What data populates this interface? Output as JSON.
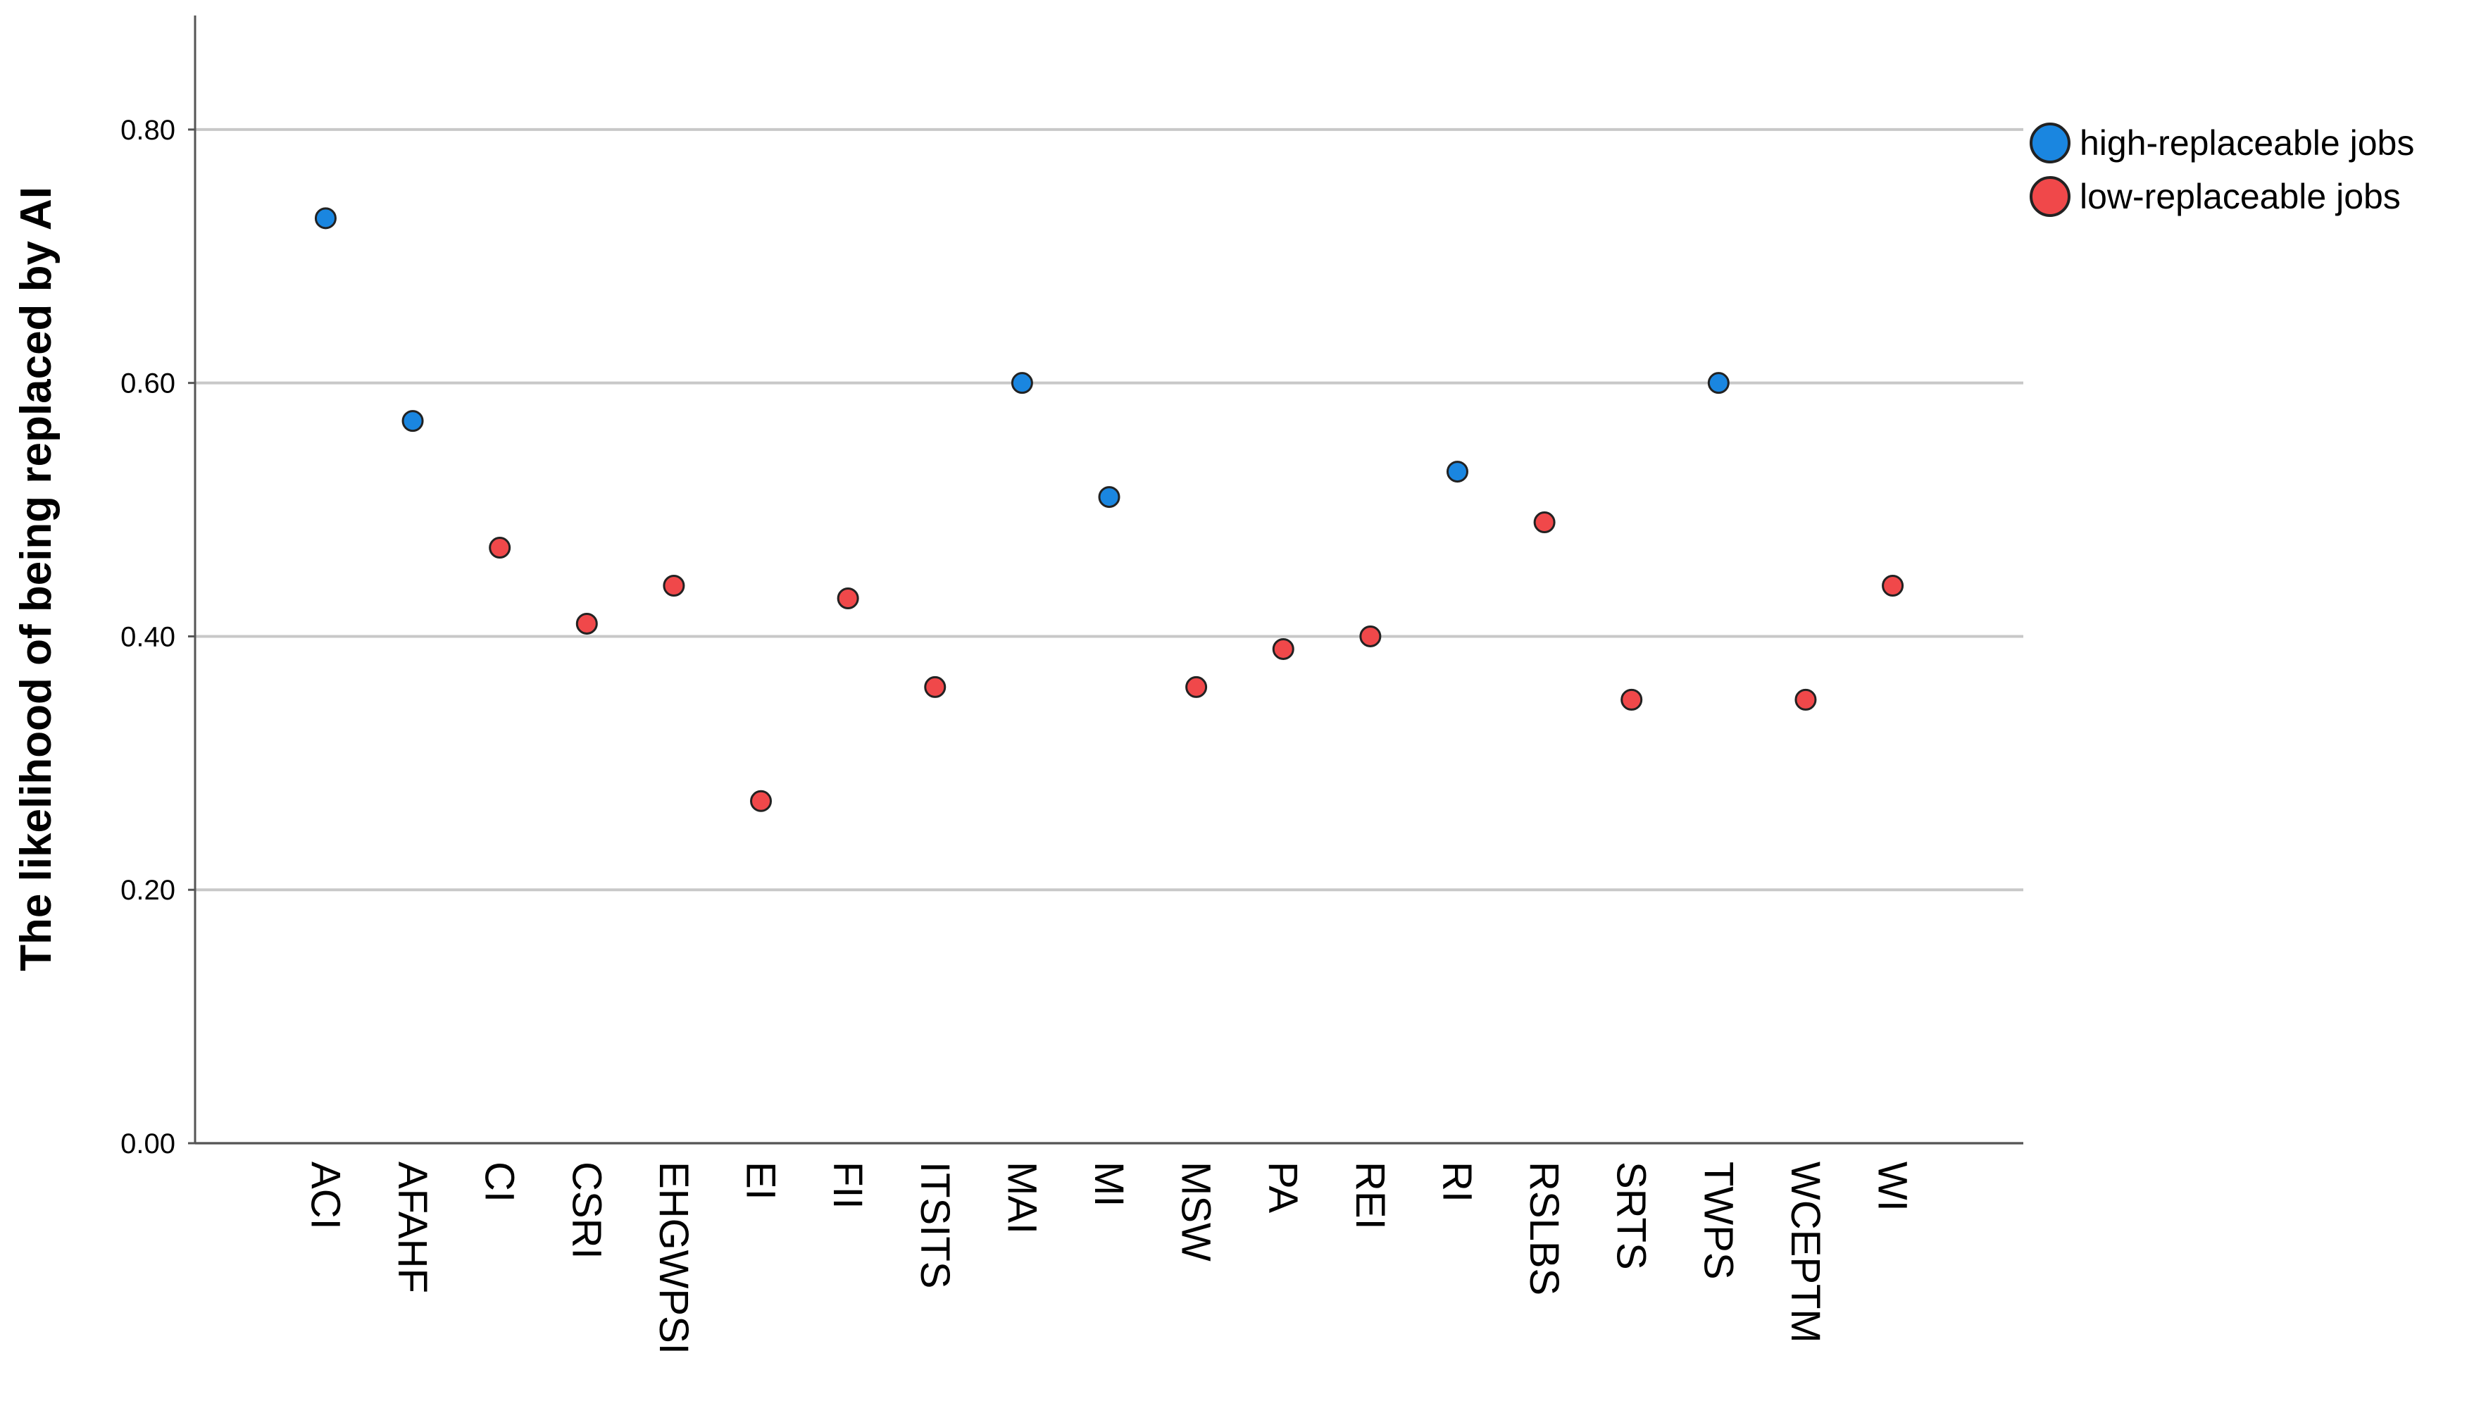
{
  "chart_data": {
    "type": "dot",
    "y_label": "The likelihood of being replaced by AI",
    "categories": [
      "ACI",
      "AFAHF",
      "CI",
      "CSRI",
      "EHGWPSI",
      "EI",
      "FII",
      "ITSITS",
      "MAI",
      "MI",
      "MSW",
      "PA",
      "REI",
      "RI",
      "RSLBS",
      "SRTS",
      "TWPS",
      "WCEPTM",
      "WI"
    ],
    "series": [
      {
        "name": "high-replaceable jobs",
        "color": "#1a86e0",
        "values": [
          0.73,
          0.57,
          null,
          null,
          null,
          null,
          null,
          null,
          0.6,
          0.51,
          null,
          null,
          null,
          0.53,
          null,
          null,
          0.6,
          null,
          null
        ]
      },
      {
        "name": "low-replaceable jobs",
        "color": "#f0484a",
        "values": [
          null,
          null,
          0.47,
          0.41,
          0.44,
          0.27,
          0.43,
          0.36,
          null,
          null,
          0.36,
          0.39,
          0.4,
          null,
          0.49,
          0.35,
          null,
          0.35,
          0.44
        ]
      }
    ],
    "ylim": [
      0,
      0.89
    ],
    "yticks": [
      {
        "value": 0,
        "label": "0.00"
      },
      {
        "value": 0.2,
        "label": "0.20"
      },
      {
        "value": 0.4,
        "label": "0.40"
      },
      {
        "value": 0.6,
        "label": "0.60"
      },
      {
        "value": 0.8,
        "label": "0.80"
      }
    ],
    "grid": true,
    "legend": "right"
  }
}
